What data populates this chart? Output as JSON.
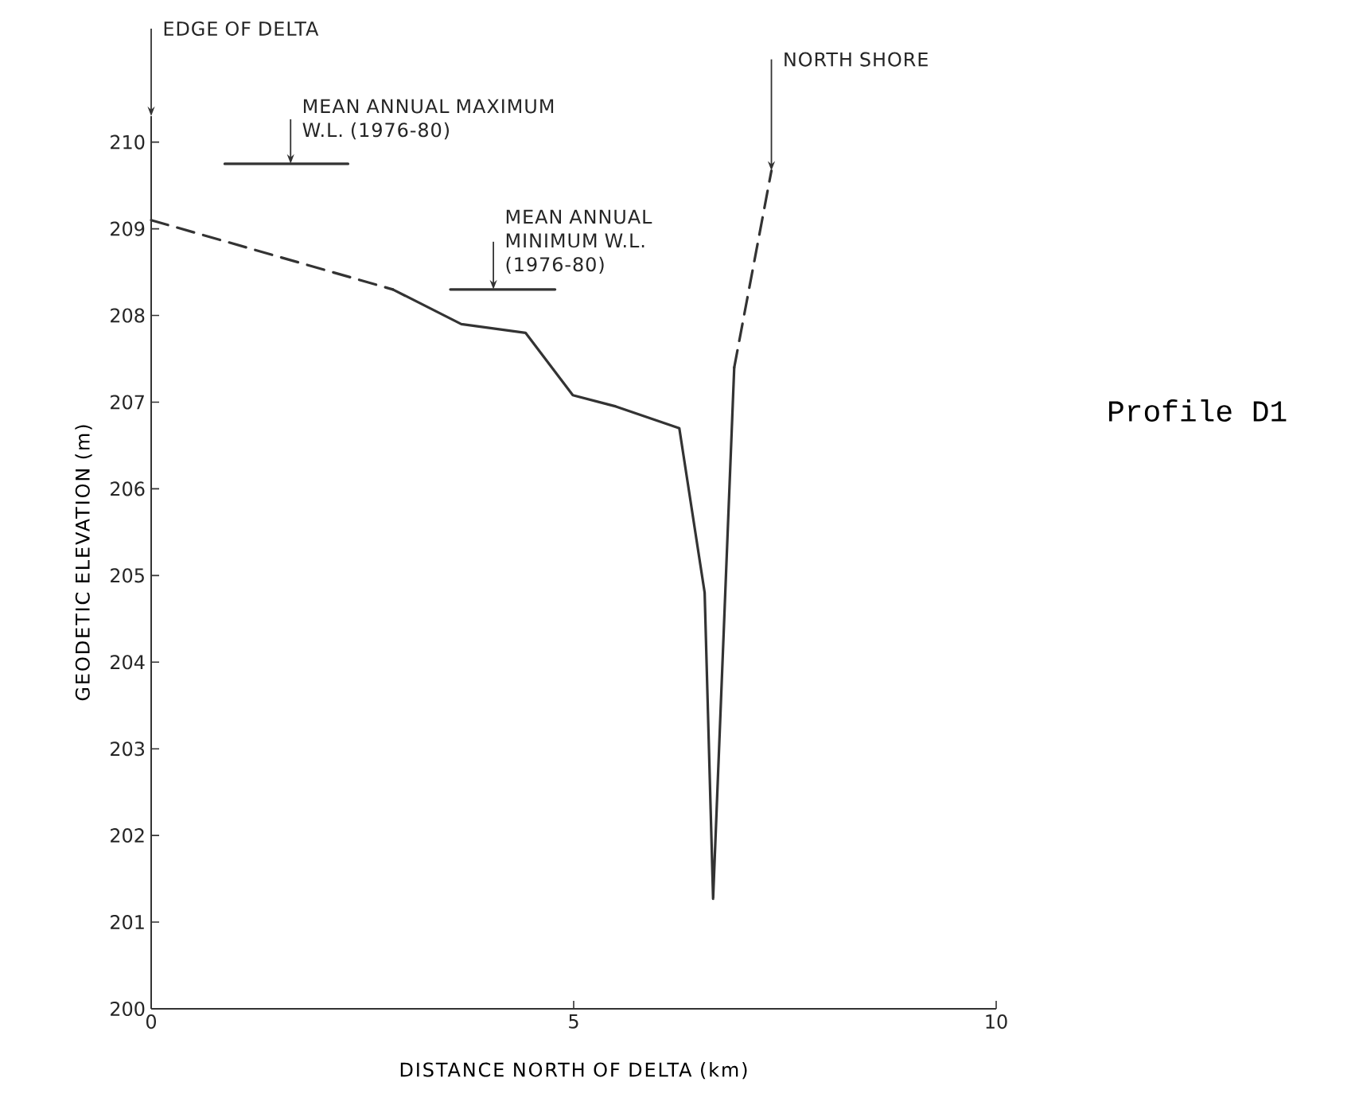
{
  "chart_data": {
    "type": "line",
    "title": "Profile D1",
    "xlabel": "DISTANCE NORTH OF DELTA (km)",
    "ylabel": "GEODETIC ELEVATION (m)",
    "xlim": [
      0,
      10
    ],
    "ylim": [
      200,
      210.3
    ],
    "xticks": [
      0,
      5,
      10
    ],
    "yticks": [
      200,
      201,
      202,
      203,
      204,
      205,
      206,
      207,
      208,
      209,
      210
    ],
    "grid": false,
    "marker": "none",
    "series": [
      {
        "color": "#333333",
        "line_style": "dashed",
        "x": [
          0,
          2.86
        ],
        "values": [
          209.1,
          208.3
        ]
      },
      {
        "color": "#333333",
        "line_style": "solid",
        "x": [
          2.86,
          3.67,
          4.43,
          4.99,
          5.5,
          6.25,
          6.55,
          6.65,
          6.9
        ],
        "values": [
          208.3,
          207.9,
          207.8,
          207.08,
          206.95,
          206.7,
          204.8,
          201.27,
          207.4
        ]
      },
      {
        "color": "#333333",
        "line_style": "dashed",
        "x": [
          6.9,
          7.34
        ],
        "values": [
          207.4,
          209.67
        ]
      },
      {
        "color": "#333333",
        "line_style": "solid",
        "x": [
          0.87,
          2.33
        ],
        "values": [
          209.75,
          209.75
        ]
      },
      {
        "color": "#333333",
        "line_style": "solid",
        "x": [
          3.54,
          4.78
        ],
        "values": [
          208.3,
          208.3
        ]
      }
    ],
    "annotations": [
      "EDGE OF DELTA",
      {
        "text": "MEAN ANNUAL MAXIMUM W.L. (1976-80)",
        "x": 1.65,
        "y": 209.75
      },
      {
        "text": "MEAN ANNUAL MINIMUM W.L. (1976-80)",
        "x": 4.05,
        "y": 208.3
      },
      {
        "text": "NORTH SHORE",
        "x": 7.34,
        "y": 209.67
      }
    ]
  }
}
